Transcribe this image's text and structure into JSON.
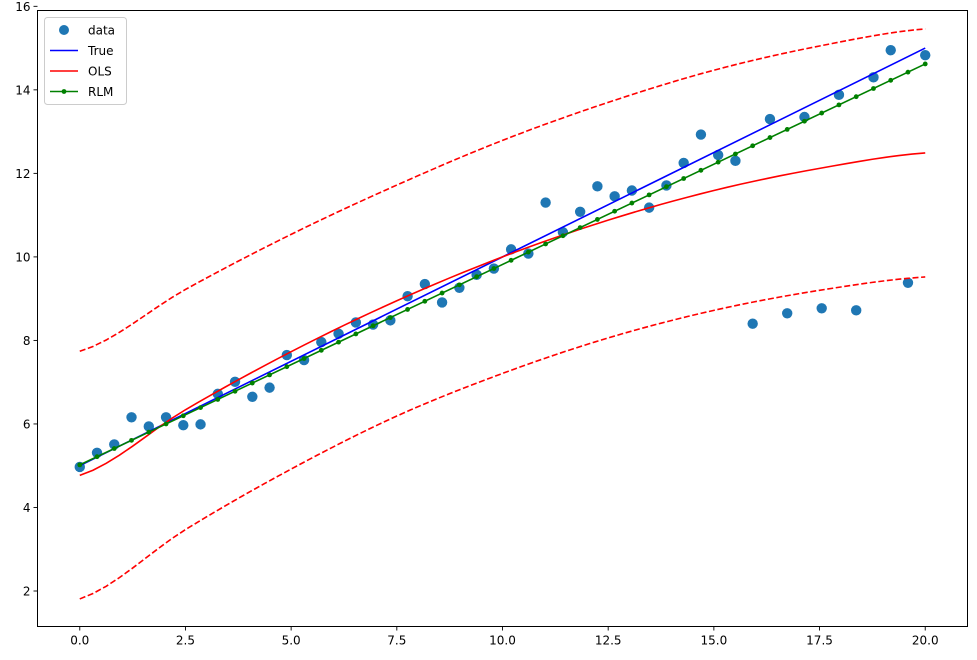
{
  "chart_data": {
    "type": "scatter",
    "title": "",
    "xlabel": "",
    "ylabel": "",
    "xlim": [
      -1.0,
      21.0
    ],
    "ylim": [
      1.15,
      15.9
    ],
    "xticks": [
      0.0,
      2.5,
      5.0,
      7.5,
      10.0,
      12.5,
      15.0,
      17.5,
      20.0
    ],
    "xtick_labels": [
      "0.0",
      "2.5",
      "5.0",
      "7.5",
      "10.0",
      "12.5",
      "15.0",
      "17.5",
      "20.0"
    ],
    "yticks": [
      2,
      4,
      6,
      8,
      10,
      12,
      14,
      16
    ],
    "ytick_labels": [
      "2",
      "4",
      "6",
      "8",
      "10",
      "12",
      "14",
      "16"
    ],
    "grid": false,
    "legend_position": "upper left",
    "legend": [
      {
        "label": "data",
        "kind": "marker",
        "color": "#1f77b4"
      },
      {
        "label": "True",
        "kind": "line",
        "color": "#0000ff"
      },
      {
        "label": "OLS",
        "kind": "line",
        "color": "#ff0000"
      },
      {
        "label": "RLM",
        "kind": "line-marker",
        "color": "#008000"
      }
    ],
    "series": [
      {
        "name": "data",
        "type": "scatter",
        "color": "#1f77b4",
        "x": [
          0.0,
          0.408,
          0.816,
          1.224,
          1.633,
          2.041,
          2.449,
          2.857,
          3.265,
          3.673,
          4.082,
          4.49,
          4.898,
          5.306,
          5.714,
          6.122,
          6.531,
          6.939,
          7.347,
          7.755,
          8.163,
          8.571,
          8.98,
          9.388,
          9.796,
          10.204,
          10.612,
          11.02,
          11.429,
          11.837,
          12.245,
          12.653,
          13.061,
          13.469,
          13.878,
          14.286,
          14.694,
          15.102,
          15.51,
          15.918,
          16.327,
          16.735,
          17.143,
          17.551,
          17.959,
          18.367,
          18.776,
          19.184,
          19.592,
          20.0
        ],
        "y": [
          4.97,
          5.31,
          5.51,
          6.16,
          5.94,
          6.16,
          5.97,
          5.99,
          6.72,
          7.01,
          6.65,
          6.87,
          7.65,
          7.53,
          7.96,
          8.16,
          8.43,
          8.38,
          8.48,
          9.06,
          9.35,
          8.91,
          9.26,
          9.57,
          9.72,
          10.18,
          10.08,
          11.3,
          10.59,
          11.08,
          11.69,
          11.45,
          11.59,
          11.18,
          11.71,
          12.25,
          12.93,
          12.44,
          12.3,
          8.4,
          13.3,
          8.65,
          13.35,
          8.77,
          13.88,
          8.72,
          14.3,
          14.95,
          9.38,
          14.83
        ]
      },
      {
        "name": "True",
        "type": "line",
        "color": "#0000ff",
        "x": [
          0,
          20
        ],
        "y": [
          5.0,
          15.0
        ]
      },
      {
        "name": "OLS",
        "type": "line",
        "color": "#ff0000",
        "x": [
          0,
          2.5,
          5,
          7.5,
          10,
          12.5,
          15,
          17.5,
          20
        ],
        "y": [
          4.77,
          6.34,
          7.73,
          8.95,
          10.0,
          10.88,
          11.59,
          12.12,
          12.49
        ]
      },
      {
        "name": "OLS upper",
        "type": "dashed-line",
        "color": "#ff0000",
        "x": [
          0,
          2.5,
          5,
          7.5,
          10,
          12.5,
          15,
          17.5,
          20
        ],
        "y": [
          7.74,
          9.22,
          10.54,
          11.72,
          12.79,
          13.7,
          14.47,
          15.05,
          15.46
        ]
      },
      {
        "name": "OLS lower",
        "type": "dashed-line",
        "color": "#ff0000",
        "x": [
          0,
          2.5,
          5,
          7.5,
          10,
          12.5,
          15,
          17.5,
          20
        ],
        "y": [
          1.81,
          3.47,
          4.92,
          6.19,
          7.21,
          8.06,
          8.72,
          9.2,
          9.52
        ]
      },
      {
        "name": "RLM",
        "type": "line-marker",
        "color": "#008000",
        "x": [
          0,
          20
        ],
        "y": [
          5.02,
          14.62
        ]
      }
    ]
  }
}
